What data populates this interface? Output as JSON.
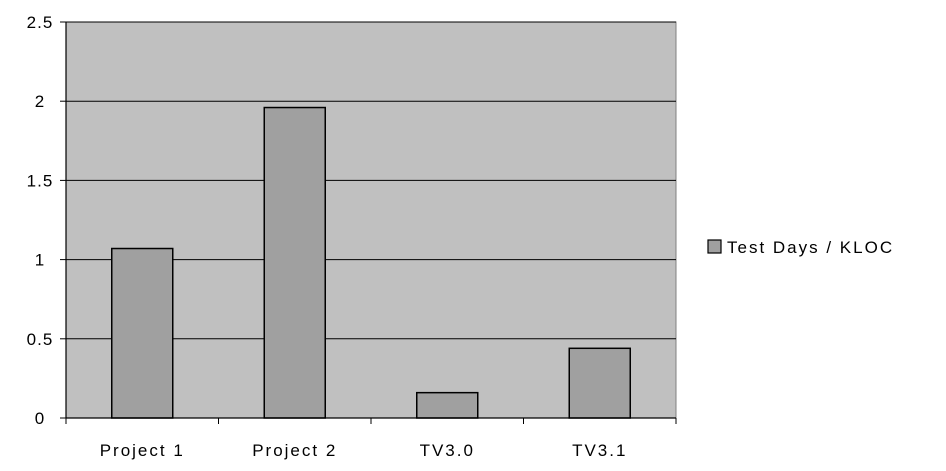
{
  "chart_data": {
    "type": "bar",
    "categories": [
      "Project 1",
      "Project 2",
      "TV3.0",
      "TV3.1"
    ],
    "series": [
      {
        "name": "Test Days / KLOC",
        "values": [
          1.07,
          1.96,
          0.16,
          0.44
        ]
      }
    ],
    "y_ticks": [
      "0",
      "0.5",
      "1",
      "1.5",
      "2",
      "2.5"
    ],
    "ylim": [
      0,
      2.5
    ],
    "grid": true,
    "legend_position": "right",
    "colors": {
      "plot_background": "#c0c0c0",
      "bar_fill": "#a0a0a0",
      "bar_stroke": "#000000",
      "gridline": "#000000",
      "page_background": "#ffffff"
    }
  }
}
